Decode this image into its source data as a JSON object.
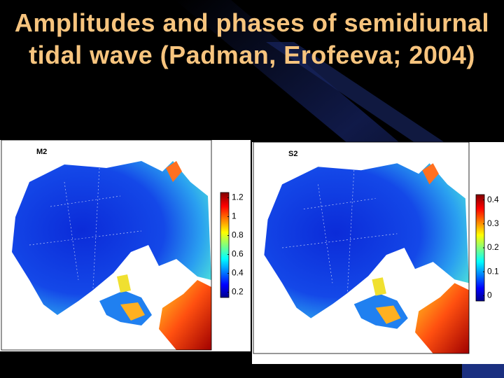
{
  "title": "Amplitudes and phases of semidiurnal tidal wave (Padman, Erofeeva; 2004)",
  "panels": [
    {
      "label": "M2",
      "colorbar_ticks": [
        "0.2",
        "0.4",
        "0.6",
        "0.8",
        "1",
        "1.2"
      ]
    },
    {
      "label": "S2",
      "colorbar_ticks": [
        "0",
        "0.1",
        "0.2",
        "0.3",
        "0.4"
      ]
    }
  ]
}
